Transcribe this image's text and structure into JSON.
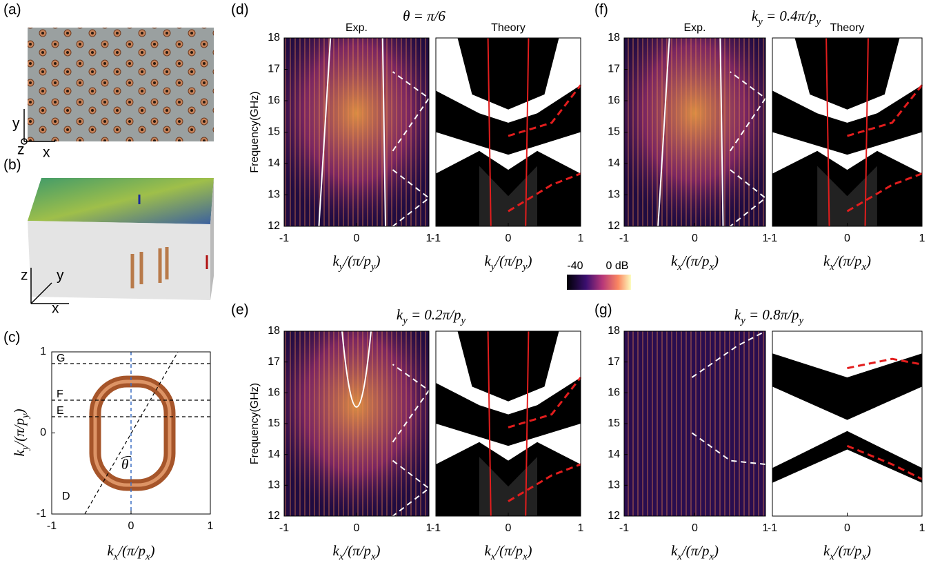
{
  "panels": [
    {
      "label": "(a)",
      "axes": [
        "y",
        "z",
        "x"
      ]
    },
    {
      "label": "(b)",
      "axes": [
        "z",
        "y",
        "x"
      ]
    },
    {
      "label": "(c)",
      "xlabel": "k_x/(π/p_x)",
      "ylabel": "k_y/(π/p_y)",
      "xlim": [
        -1,
        1
      ],
      "ylim": [
        -1,
        1
      ],
      "xticks": [
        -1,
        0,
        1
      ],
      "yticks": [
        -1,
        0,
        1
      ],
      "cuts": [
        "G",
        "F",
        "E",
        "D"
      ],
      "angle": "θ"
    },
    {
      "label": "(d)",
      "title": "θ = π/6",
      "plots": [
        {
          "heading": "Exp.",
          "xlabel": "k_y/(π/p_y)",
          "ylabel": "Frequency(GHz)",
          "xlim": [
            -1,
            1
          ],
          "ylim": [
            12,
            18
          ],
          "xticks": [
            -1,
            0,
            1
          ],
          "yticks": [
            12,
            13,
            14,
            15,
            16,
            17,
            18
          ]
        },
        {
          "heading": "Theory",
          "xlabel": "k_y/(π/p_y)",
          "xlim": [
            -1,
            1
          ],
          "xticks": [
            -1,
            0,
            1
          ]
        }
      ]
    },
    {
      "label": "(e)",
      "title": "k_y = 0.2π/p_y",
      "plots": [
        {
          "xlabel": "k_x/(π/p_x)",
          "ylabel": "Frequency(GHz)",
          "xlim": [
            -1,
            1
          ],
          "ylim": [
            12,
            18
          ],
          "xticks": [
            -1,
            0,
            1
          ],
          "yticks": [
            12,
            13,
            14,
            15,
            16,
            17,
            18
          ]
        },
        {
          "xlabel": "k_x/(π/p_x)",
          "xlim": [
            -1,
            1
          ],
          "xticks": [
            -1,
            0,
            1
          ]
        }
      ]
    },
    {
      "label": "(f)",
      "title": "k_y = 0.4π/p_y",
      "plots": [
        {
          "heading": "Exp.",
          "xlabel": "k_x/(π/p_x)",
          "xlim": [
            -1,
            1
          ],
          "ylim": [
            12,
            18
          ],
          "xticks": [
            -1,
            0,
            1
          ],
          "yticks": [
            12,
            13,
            14,
            15,
            16,
            17,
            18
          ]
        },
        {
          "heading": "Theory",
          "xlabel": "k_x/(π/p_x)",
          "xlim": [
            -1,
            1
          ],
          "xticks": [
            -1,
            0,
            1
          ]
        }
      ]
    },
    {
      "label": "(g)",
      "title": "k_y = 0.8π/p_y",
      "plots": [
        {
          "xlabel": "k_x/(π/p_x)",
          "xlim": [
            -1,
            1
          ],
          "ylim": [
            12,
            18
          ],
          "xticks": [
            -1,
            0,
            1
          ],
          "yticks": [
            12,
            13,
            14,
            15,
            16,
            17,
            18
          ]
        },
        {
          "xlabel": "k_x/(π/p_x)",
          "xlim": [
            -1,
            1
          ],
          "xticks": [
            -1,
            0,
            1
          ]
        }
      ]
    }
  ],
  "colorbar": {
    "lim": [
      -40,
      0
    ],
    "ticks": [
      -40,
      {
        "value": 0,
        "label": "0 dB"
      }
    ]
  }
}
